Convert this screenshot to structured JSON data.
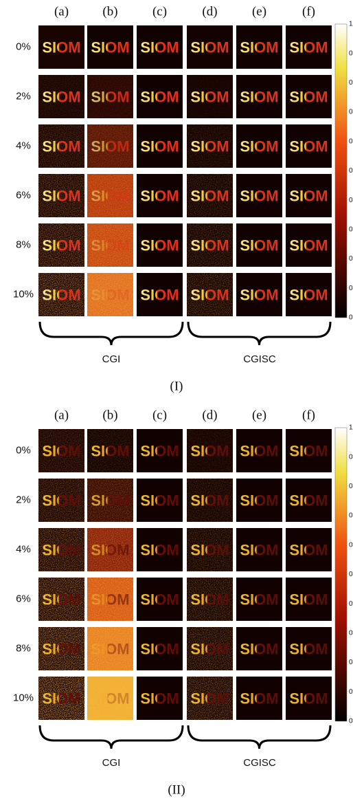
{
  "figure": {
    "column_labels": [
      "(a)",
      "(b)",
      "(c)",
      "(d)",
      "(e)",
      "(f)"
    ],
    "panels": [
      {
        "label": "(I)",
        "row_labels": [
          "0%",
          "2%",
          "4%",
          "6%",
          "8%",
          "10%"
        ],
        "image_text": "SIOM",
        "colorbar_ticks": [
          "1",
          "0",
          "0",
          "0",
          "0",
          "0",
          "0",
          "0",
          "0",
          "0",
          "0"
        ],
        "groups": [
          "CGI",
          "CGISC"
        ]
      },
      {
        "label": "(II)",
        "row_labels": [
          "0%",
          "2%",
          "4%",
          "6%",
          "8%",
          "10%"
        ],
        "image_text": "SIOM",
        "colorbar_ticks": [
          "1",
          "0",
          "0",
          "0",
          "0",
          "0",
          "0",
          "0",
          "0",
          "0",
          "0"
        ],
        "groups": [
          "CGI",
          "CGISC"
        ]
      }
    ]
  }
}
